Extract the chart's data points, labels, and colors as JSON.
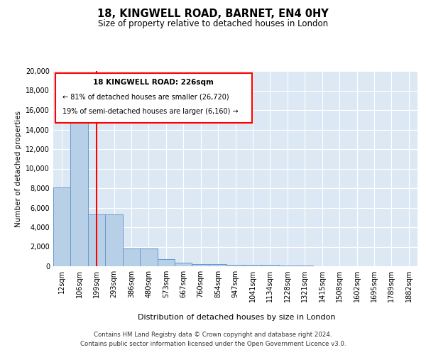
{
  "title": "18, KINGWELL ROAD, BARNET, EN4 0HY",
  "subtitle": "Size of property relative to detached houses in London",
  "xlabel": "Distribution of detached houses by size in London",
  "ylabel": "Number of detached properties",
  "bar_color": "#b8cfe8",
  "bar_edge_color": "#6699cc",
  "background_color": "#dde8f5",
  "grid_color": "#ffffff",
  "categories": [
    "12sqm",
    "106sqm",
    "199sqm",
    "293sqm",
    "386sqm",
    "480sqm",
    "573sqm",
    "667sqm",
    "760sqm",
    "854sqm",
    "947sqm",
    "1041sqm",
    "1134sqm",
    "1228sqm",
    "1321sqm",
    "1415sqm",
    "1508sqm",
    "1602sqm",
    "1695sqm",
    "1789sqm",
    "1882sqm"
  ],
  "values": [
    8100,
    16500,
    5300,
    5300,
    1850,
    1850,
    700,
    350,
    250,
    200,
    180,
    160,
    130,
    100,
    50,
    30,
    20,
    10,
    5,
    3,
    2
  ],
  "ylim": [
    0,
    20000
  ],
  "yticks": [
    0,
    2000,
    4000,
    6000,
    8000,
    10000,
    12000,
    14000,
    16000,
    18000,
    20000
  ],
  "redline_x": 2,
  "annotation_title": "18 KINGWELL ROAD: 226sqm",
  "annotation_line1": "← 81% of detached houses are smaller (26,720)",
  "annotation_line2": "19% of semi-detached houses are larger (6,160) →",
  "footnote1": "Contains HM Land Registry data © Crown copyright and database right 2024.",
  "footnote2": "Contains public sector information licensed under the Open Government Licence v3.0."
}
